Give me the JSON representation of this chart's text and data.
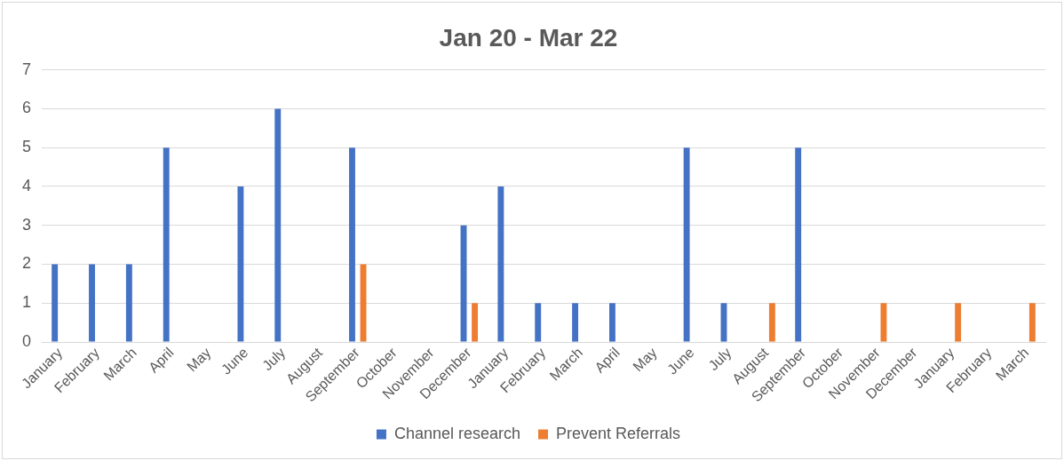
{
  "chart_data": {
    "type": "bar",
    "title": "Jan 20 - Mar 22",
    "categories": [
      "January",
      "February",
      "March",
      "April",
      "May",
      "June",
      "July",
      "August",
      "September",
      "October",
      "November",
      "December",
      "January",
      "February",
      "March",
      "April",
      "May",
      "June",
      "July",
      "August",
      "September",
      "October",
      "November",
      "December",
      "January",
      "February",
      "March"
    ],
    "series": [
      {
        "name": "Channel research",
        "color": "#4472c4",
        "values": [
          2,
          2,
          2,
          5,
          0,
          4,
          6,
          0,
          5,
          0,
          0,
          3,
          4,
          1,
          1,
          1,
          0,
          5,
          1,
          0,
          5,
          0,
          0,
          0,
          0,
          0,
          0
        ]
      },
      {
        "name": "Prevent Referrals",
        "color": "#ed7d31",
        "values": [
          0,
          0,
          0,
          0,
          0,
          0,
          0,
          0,
          2,
          0,
          0,
          1,
          0,
          0,
          0,
          0,
          0,
          0,
          0,
          1,
          0,
          0,
          1,
          0,
          1,
          0,
          1
        ]
      }
    ],
    "ylim": [
      0,
      7
    ],
    "yticks": [
      0,
      1,
      2,
      3,
      4,
      5,
      6,
      7
    ],
    "grid": "y",
    "legend": "bottom"
  }
}
